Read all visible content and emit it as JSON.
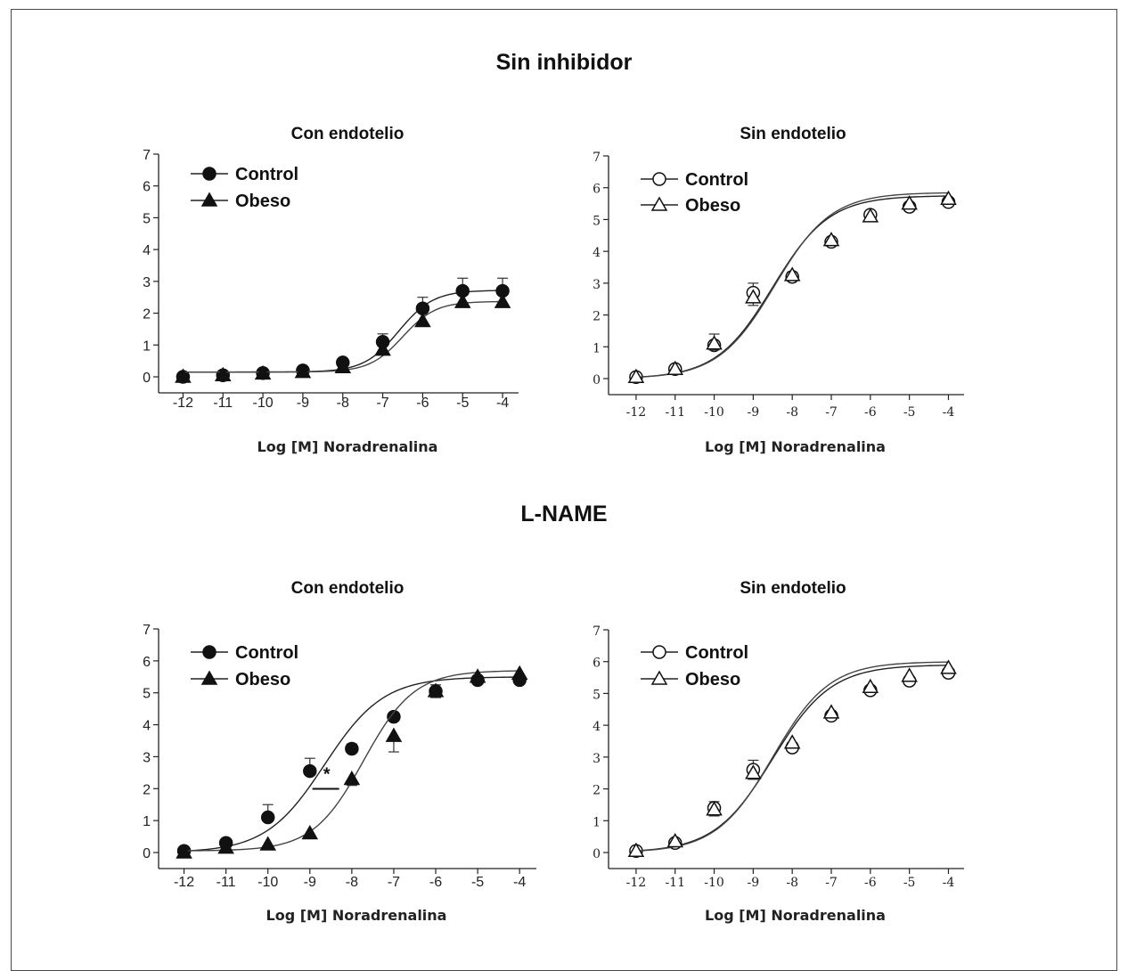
{
  "titles": {
    "top": "Sin inhibidor",
    "bottom": "L-NAME"
  },
  "chart_data": [
    {
      "type": "line",
      "group": "Sin inhibidor",
      "title": "Con endotelio",
      "xlabel": "Log [M] Noradrenalina",
      "ylabel": "",
      "x": [
        -12,
        -11,
        -10,
        -9,
        -8,
        -7,
        -6,
        -5,
        -4
      ],
      "xlim": [
        -12.5,
        -3.6
      ],
      "ylim": [
        0,
        7
      ],
      "yticks": [
        0,
        1,
        2,
        3,
        4,
        5,
        6,
        7
      ],
      "legend": "top-left",
      "grid": false,
      "series": [
        {
          "name": "Control",
          "marker": "circle",
          "filled": true,
          "values": [
            0.0,
            0.05,
            0.12,
            0.2,
            0.45,
            1.1,
            2.15,
            2.7,
            2.7
          ],
          "errors": [
            0.05,
            0.05,
            0.05,
            0.05,
            0.1,
            0.25,
            0.35,
            0.4,
            0.4
          ],
          "fit": {
            "bottom": 0.15,
            "top": 2.72,
            "logEC50": -6.6,
            "hill": 1.0
          }
        },
        {
          "name": "Obeso",
          "marker": "triangle",
          "filled": true,
          "values": [
            0.0,
            0.05,
            0.1,
            0.15,
            0.3,
            0.85,
            1.75,
            2.35,
            2.35
          ],
          "errors": [
            0.05,
            0.05,
            0.05,
            0.05,
            0.05,
            0.15,
            0.15,
            0.15,
            0.15
          ],
          "fit": {
            "bottom": 0.15,
            "top": 2.37,
            "logEC50": -6.5,
            "hill": 1.05
          }
        }
      ]
    },
    {
      "type": "line",
      "group": "Sin inhibidor",
      "title": "Sin endotelio",
      "xlabel": "Log [M] Noradrenalina",
      "ylabel": "",
      "x": [
        -12,
        -11,
        -10,
        -9,
        -8,
        -7,
        -6,
        -5,
        -4
      ],
      "xlim": [
        -12.5,
        -3.6
      ],
      "ylim": [
        0,
        7
      ],
      "yticks": [
        0,
        1,
        2,
        3,
        4,
        5,
        6,
        7
      ],
      "legend": "top-left",
      "grid": false,
      "series": [
        {
          "name": "Control",
          "marker": "circle",
          "filled": false,
          "values": [
            0.05,
            0.3,
            1.05,
            2.7,
            3.2,
            4.3,
            5.15,
            5.4,
            5.55
          ],
          "errors": [
            0.1,
            0.1,
            0.35,
            0.3,
            0.15,
            0.1,
            0.1,
            0.1,
            0.1
          ],
          "fit": {
            "bottom": 0.0,
            "top": 5.75,
            "logEC50": -8.5,
            "hill": 0.6
          }
        },
        {
          "name": "Obeso",
          "marker": "triangle",
          "filled": false,
          "values": [
            0.05,
            0.3,
            1.1,
            2.55,
            3.25,
            4.35,
            5.1,
            5.5,
            5.65
          ],
          "errors": [
            0.1,
            0.1,
            0.2,
            0.25,
            0.15,
            0.1,
            0.1,
            0.1,
            0.1
          ],
          "fit": {
            "bottom": 0.0,
            "top": 5.85,
            "logEC50": -8.45,
            "hill": 0.6
          }
        }
      ]
    },
    {
      "type": "line",
      "group": "L-NAME",
      "title": "Con endotelio",
      "xlabel": "Log [M] Noradrenalina",
      "ylabel": "",
      "x": [
        -12,
        -11,
        -10,
        -9,
        -8,
        -7,
        -6,
        -5,
        -4
      ],
      "xlim": [
        -12.5,
        -3.6
      ],
      "ylim": [
        0,
        7
      ],
      "yticks": [
        0,
        1,
        2,
        3,
        4,
        5,
        6,
        7
      ],
      "legend": "top-left",
      "grid": false,
      "annotations": [
        {
          "text": "*",
          "x": -8.6,
          "y": 2.05
        }
      ],
      "series": [
        {
          "name": "Control",
          "marker": "circle",
          "filled": true,
          "values": [
            0.05,
            0.3,
            1.1,
            2.55,
            3.25,
            4.25,
            5.05,
            5.4,
            5.4
          ],
          "errors": [
            0.05,
            0.1,
            0.4,
            0.4,
            0.15,
            0.1,
            0.2,
            0.1,
            0.1
          ],
          "fit": {
            "bottom": 0.0,
            "top": 5.5,
            "logEC50": -8.65,
            "hill": 0.62
          }
        },
        {
          "name": "Obeso",
          "marker": "triangle",
          "filled": true,
          "values": [
            0.0,
            0.15,
            0.25,
            0.6,
            2.3,
            3.65,
            5.05,
            5.5,
            5.6
          ],
          "errors": [
            0.05,
            0.05,
            0.05,
            0.05,
            0.2,
            0.5,
            0.2,
            0.1,
            0.1
          ],
          "fit": {
            "bottom": 0.05,
            "top": 5.7,
            "logEC50": -7.72,
            "hill": 0.72
          }
        }
      ]
    },
    {
      "type": "line",
      "group": "L-NAME",
      "title": "Sin endotelio",
      "xlabel": "Log [M] Noradrenalina",
      "ylabel": "",
      "x": [
        -12,
        -11,
        -10,
        -9,
        -8,
        -7,
        -6,
        -5,
        -4
      ],
      "xlim": [
        -12.5,
        -3.6
      ],
      "ylim": [
        0,
        7
      ],
      "yticks": [
        0,
        1,
        2,
        3,
        4,
        5,
        6,
        7
      ],
      "legend": "top-left",
      "grid": false,
      "series": [
        {
          "name": "Control",
          "marker": "circle",
          "filled": false,
          "values": [
            0.05,
            0.3,
            1.4,
            2.6,
            3.3,
            4.3,
            5.1,
            5.4,
            5.65
          ],
          "errors": [
            0.1,
            0.1,
            0.2,
            0.3,
            0.15,
            0.1,
            0.1,
            0.1,
            0.1
          ],
          "fit": {
            "bottom": 0.0,
            "top": 5.9,
            "logEC50": -8.5,
            "hill": 0.58
          }
        },
        {
          "name": "Obeso",
          "marker": "triangle",
          "filled": false,
          "values": [
            0.05,
            0.35,
            1.35,
            2.5,
            3.45,
            4.4,
            5.2,
            5.55,
            5.8
          ],
          "errors": [
            0.1,
            0.1,
            0.2,
            0.2,
            0.15,
            0.1,
            0.1,
            0.1,
            0.1
          ],
          "fit": {
            "bottom": 0.0,
            "top": 6.0,
            "logEC50": -8.5,
            "hill": 0.6
          }
        }
      ]
    }
  ]
}
